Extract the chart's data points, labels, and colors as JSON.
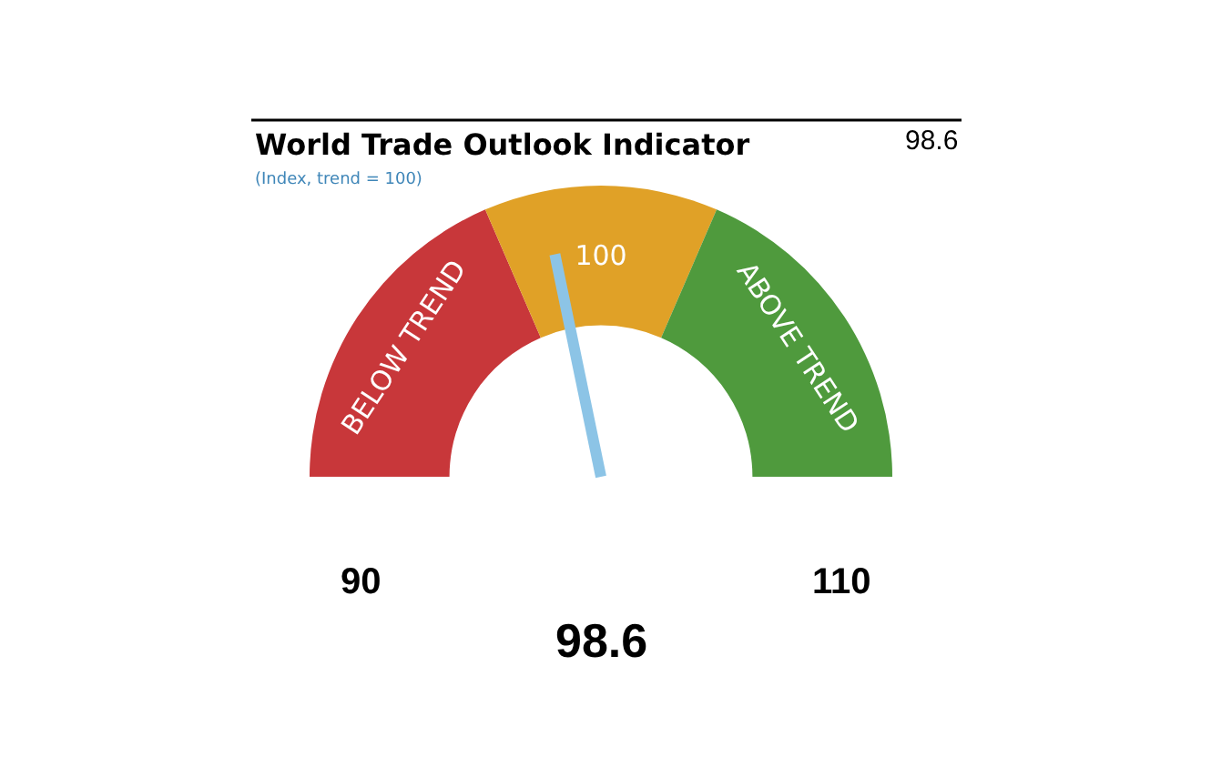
{
  "chart_data": {
    "type": "donut",
    "title": "World Trade Outlook Indicator",
    "subtitle": "(Index, trend = 100)",
    "categories": [
      "BELOW TREND",
      "100",
      "ABOVE TREND"
    ],
    "values": [
      37,
      26,
      37
    ],
    "colors": [
      "#c8373a",
      "#e0a127",
      "#4f9a3d"
    ],
    "needle": "100",
    "legend": false,
    "annotations": [
      "98.6",
      "90",
      "110",
      "98.6"
    ]
  }
}
